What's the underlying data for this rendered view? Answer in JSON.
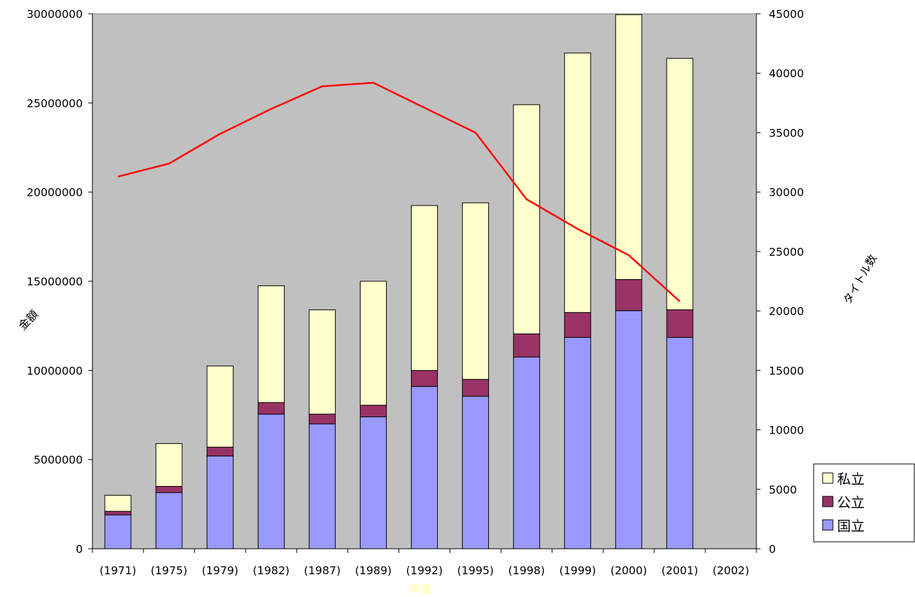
{
  "chart_data": {
    "type": "bar",
    "subtype": "stacked-bar-with-line",
    "categories": [
      "(1971)",
      "(1975)",
      "(1979)",
      "(1982)",
      "(1987)",
      "(1989)",
      "(1992)",
      "(1995)",
      "(1998)",
      "(1999)",
      "(2000)",
      "(2001)",
      "(2002)"
    ],
    "series": [
      {
        "name": "国立",
        "type": "bar",
        "axis": "left",
        "color": "#9999ff",
        "values": [
          1900000,
          3150000,
          5200000,
          7550000,
          7000000,
          7400000,
          9100000,
          8550000,
          10750000,
          11850000,
          13350000,
          11850000,
          null
        ]
      },
      {
        "name": "公立",
        "type": "bar",
        "axis": "left",
        "color": "#993366",
        "values": [
          200000,
          350000,
          500000,
          650000,
          550000,
          650000,
          900000,
          950000,
          1300000,
          1400000,
          1750000,
          1550000,
          null
        ]
      },
      {
        "name": "私立",
        "type": "bar",
        "axis": "left",
        "color": "#ffffcc",
        "values": [
          900000,
          2400000,
          4550000,
          6550000,
          5850000,
          6950000,
          9250000,
          9900000,
          12850000,
          14550000,
          14850000,
          14100000,
          null
        ]
      },
      {
        "name": "",
        "type": "line",
        "axis": "right",
        "color": "#ff0000",
        "values": [
          31300,
          32400,
          34900,
          37000,
          38900,
          39200,
          37100,
          35000,
          29400,
          26900,
          24700,
          20800,
          null
        ]
      }
    ],
    "ylabel": "金額",
    "y2label": "タイトル数",
    "xlabel": "年度",
    "ylim": [
      0,
      30000000
    ],
    "y2lim": [
      0,
      45000
    ],
    "yticks": [
      "0",
      "5000000",
      "10000000",
      "15000000",
      "20000000",
      "25000000",
      "30000000"
    ],
    "y2ticks": [
      "0",
      "5000",
      "10000",
      "15000",
      "20000",
      "25000",
      "30000",
      "35000",
      "40000",
      "45000"
    ],
    "grid": false,
    "legend": [
      "私立",
      "公立",
      "国立"
    ],
    "legend_position": "bottom-right",
    "colors": {
      "plot_bg": "#c0c0c0",
      "xlabel": "#ffff99",
      "line": "#ff0000",
      "bar_border": "#000000"
    }
  }
}
